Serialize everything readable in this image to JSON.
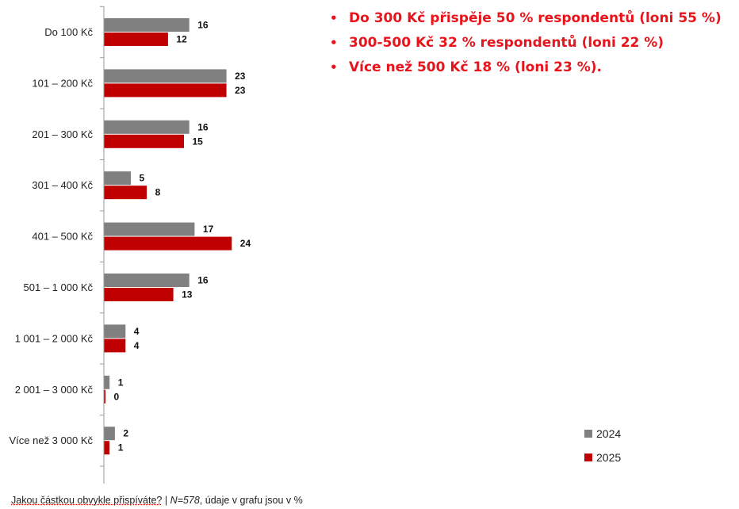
{
  "chart_data": {
    "type": "bar",
    "orientation": "horizontal",
    "categories": [
      "Do 100 Kč",
      "101 – 200 Kč",
      "201 – 300 Kč",
      "301 – 400 Kč",
      "401 – 500 Kč",
      "501 – 1 000 Kč",
      "1 001 – 2 000 Kč",
      "2 001 – 3 000 Kč",
      "Více než 3 000 Kč"
    ],
    "series": [
      {
        "name": "2024",
        "values": [
          16,
          23,
          16,
          5,
          17,
          16,
          4,
          1,
          2
        ],
        "color": "#808080"
      },
      {
        "name": "2025",
        "values": [
          12,
          23,
          15,
          8,
          24,
          13,
          4,
          0,
          1
        ],
        "color": "#c00000"
      }
    ],
    "xlim": [
      0,
      60
    ],
    "data_labels": true,
    "grid": false,
    "legend_position": "bottom-right"
  },
  "bullets": [
    "Do 300 Kč přispěje 50 % respondentů (loni 55 %)",
    "300-500 Kč 32 % respondentů (loni 22 %)",
    "Více než 500 Kč 18 % (loni 23 %)."
  ],
  "bullet_color": "#e8141c",
  "footnote": {
    "question": "Jakou částkou obvykle přispíváte?",
    "separator": "|",
    "sample": "N=578",
    "note": ",  údaje v grafu jsou v %"
  }
}
